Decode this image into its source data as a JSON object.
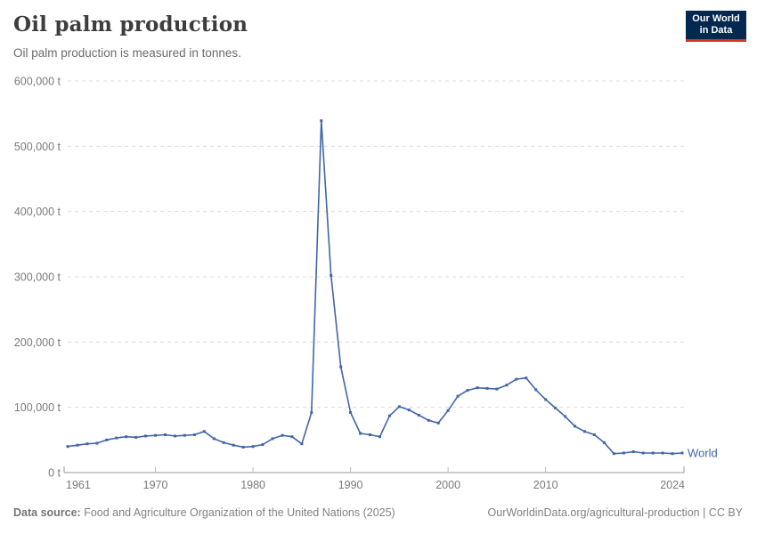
{
  "header": {
    "title": "Oil palm production",
    "subtitle": "Oil palm production is measured in tonnes."
  },
  "logo": {
    "line1": "Our World",
    "line2": "in Data",
    "bg": "#04284f",
    "accent": "#d8352a"
  },
  "series_label": "World",
  "footer": {
    "source_label": "Data source:",
    "source_text": " Food and Agriculture Organization of the United Nations (2025)",
    "credit": "OurWorldinData.org/agricultural-production | CC BY"
  },
  "chart_data": {
    "type": "line",
    "title": "Oil palm production",
    "unit": "t",
    "xlabel": "",
    "ylabel": "tonnes",
    "grid": "dashed-horizontal",
    "legend_position": "end-of-line",
    "line_color": "#4265a8",
    "axis_text_color": "#7b7b7b",
    "gridline_color": "#dcdcdc",
    "axis_line_color": "#9a9a9a",
    "ylim": [
      0,
      600000
    ],
    "yticks": [
      0,
      100000,
      200000,
      300000,
      400000,
      500000,
      600000
    ],
    "ytick_labels": [
      "0 t",
      "100,000 t",
      "200,000 t",
      "300,000 t",
      "400,000 t",
      "500,000 t",
      "600,000 t"
    ],
    "xticks": [
      1961,
      1970,
      1980,
      1990,
      2000,
      2010,
      2024
    ],
    "xtick_labels": [
      "1961",
      "1970",
      "1980",
      "1990",
      "2000",
      "2010",
      "2024"
    ],
    "x": [
      1961,
      1962,
      1963,
      1964,
      1965,
      1966,
      1967,
      1968,
      1969,
      1970,
      1971,
      1972,
      1973,
      1974,
      1975,
      1976,
      1977,
      1978,
      1979,
      1980,
      1981,
      1982,
      1983,
      1984,
      1985,
      1986,
      1987,
      1988,
      1989,
      1990,
      1991,
      1992,
      1993,
      1994,
      1995,
      1996,
      1997,
      1998,
      1999,
      2000,
      2001,
      2002,
      2003,
      2004,
      2005,
      2006,
      2007,
      2008,
      2009,
      2010,
      2011,
      2012,
      2013,
      2014,
      2015,
      2016,
      2017,
      2018,
      2019,
      2020,
      2021,
      2022,
      2023,
      2024
    ],
    "series": [
      {
        "name": "World",
        "values": [
          40000,
          42000,
          44000,
          45000,
          50000,
          53000,
          55000,
          54000,
          56000,
          57000,
          58000,
          56000,
          57000,
          58000,
          63000,
          52000,
          46000,
          42000,
          39000,
          40000,
          43000,
          52000,
          57000,
          55000,
          44000,
          92000,
          539000,
          302000,
          162000,
          92000,
          60000,
          58000,
          55000,
          87000,
          101000,
          96000,
          88000,
          80000,
          76000,
          95000,
          117000,
          126000,
          130000,
          129000,
          128000,
          134000,
          143000,
          145000,
          127000,
          112000,
          99000,
          86000,
          71000,
          63000,
          58000,
          46000,
          29000,
          30000,
          32000,
          30000,
          30000,
          30000,
          29000,
          30000
        ]
      }
    ]
  }
}
